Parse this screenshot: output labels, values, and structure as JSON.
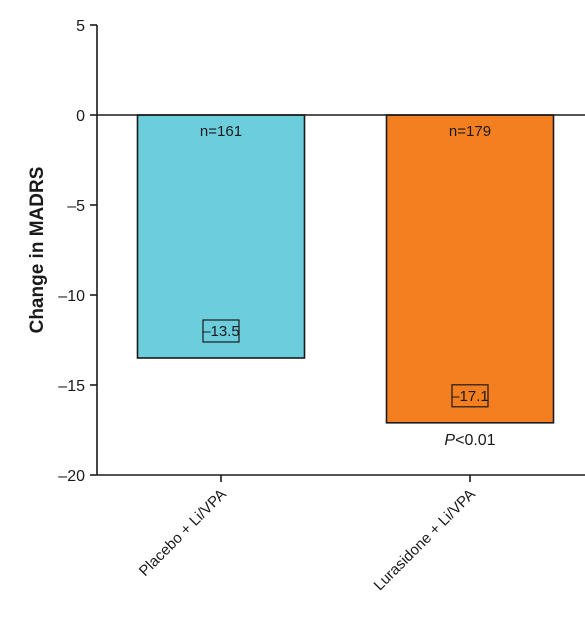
{
  "chart_data": {
    "type": "bar",
    "title": "",
    "xlabel": "",
    "ylabel": "Change in MADRS",
    "ylim": [
      -20,
      5
    ],
    "yticks": [
      5,
      0,
      -5,
      -10,
      -15,
      -20
    ],
    "ytick_labels": [
      "5",
      "0",
      "–5",
      "–10",
      "–15",
      "–20"
    ],
    "grid": false,
    "categories": [
      "Placebo + Li/VPA",
      "Lurasidone + Li/VPA"
    ],
    "values": [
      -13.5,
      -17.1
    ],
    "value_labels": [
      "–13.5",
      "–17.1"
    ],
    "n_labels": [
      "n=161",
      "n=179"
    ],
    "colors": [
      "#6CCDDD",
      "#F47F20"
    ],
    "annotation": {
      "italic": "P",
      "rest": "<0.01"
    }
  }
}
